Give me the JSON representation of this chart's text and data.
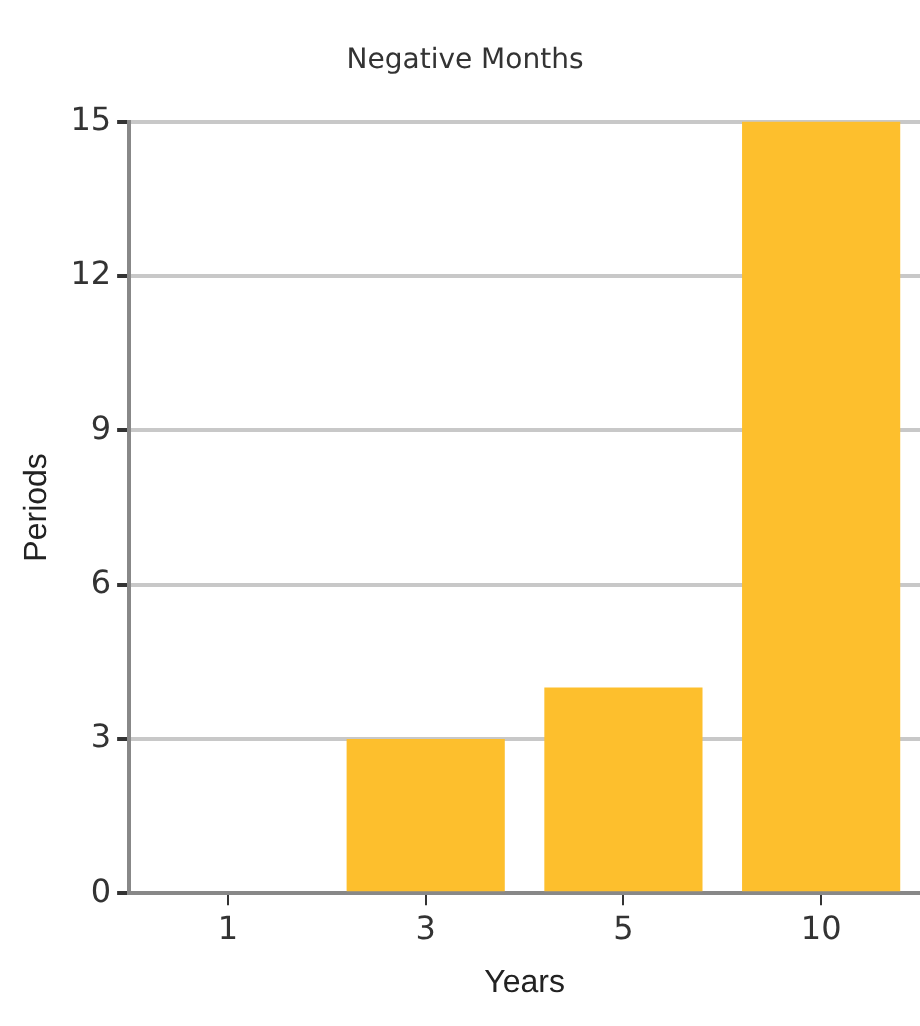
{
  "chart_data": {
    "type": "bar",
    "title": "Negative Months",
    "xlabel": "Years",
    "ylabel": "Periods",
    "categories": [
      "1",
      "3",
      "5",
      "10"
    ],
    "values": [
      0,
      3,
      4,
      15
    ],
    "color": "#fdbf2d",
    "ylim": [
      0,
      15
    ],
    "yticks": [
      0,
      3,
      6,
      9,
      12,
      15
    ],
    "grid": "y",
    "legend": false
  }
}
